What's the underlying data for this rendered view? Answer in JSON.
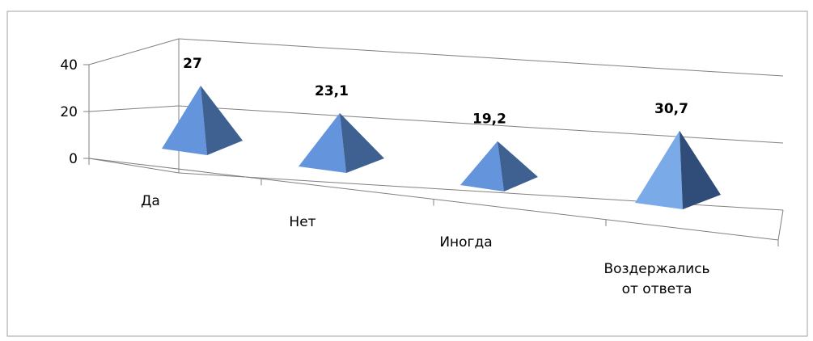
{
  "chart_data": {
    "type": "bar",
    "bar_shape": "pyramid-3d",
    "categories": [
      "Да",
      "Нет",
      "Иногда",
      "Воздержались от ответа"
    ],
    "category_lines": [
      [
        "Да"
      ],
      [
        "Нет"
      ],
      [
        "Иногда"
      ],
      [
        "Воздержались",
        "от ответа"
      ]
    ],
    "values": [
      27,
      23.1,
      19.2,
      30.7
    ],
    "data_labels": [
      "27",
      "23,1",
      "19,2",
      "30,7"
    ],
    "ylim": [
      0,
      40
    ],
    "yticks": [
      "0",
      "20",
      "40"
    ],
    "grid": true,
    "legend": "none",
    "colors": {
      "pyramid_light": "#6495DC",
      "pyramid_dark": "#3F6191",
      "pyramid_last_light": "#7AAAE8",
      "pyramid_last_dark": "#2F4D78",
      "axis": "#808080",
      "frame": "#A0A0A0"
    }
  }
}
